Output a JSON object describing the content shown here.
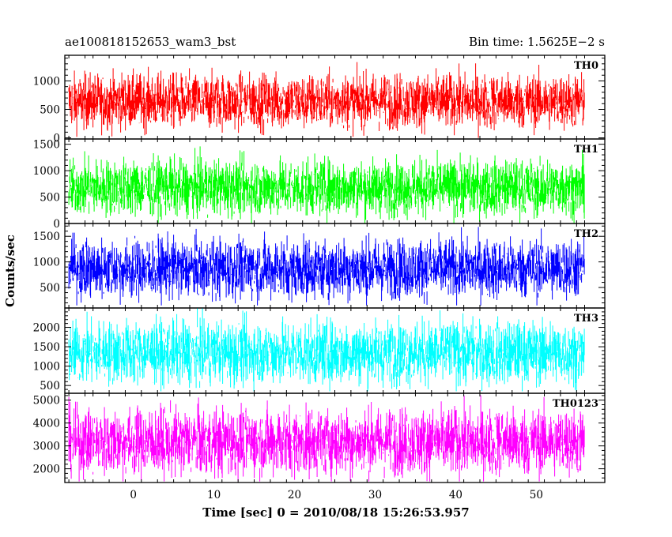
{
  "header": {
    "left_title": "ae100818152653_wam3_bst",
    "right_title": "Bin time: 1.5625E−2 s"
  },
  "chart_data": {
    "type": "line",
    "xlabel": "Time [sec] 0 = 2010/08/18 15:26:53.957",
    "ylabel": "Counts/sec",
    "xlim": [
      -8.5,
      58.5
    ],
    "x_range_data": [
      -8,
      56
    ],
    "x_ticks": [
      0,
      10,
      20,
      30,
      40,
      50
    ],
    "grid": false,
    "panels": [
      {
        "name": "TH0",
        "color": "#ff0000",
        "ylim": [
          -20,
          1450
        ],
        "y_ticks": [
          0,
          500,
          1000
        ],
        "mean": 640,
        "spread": 560,
        "min_val": 0
      },
      {
        "name": "TH1",
        "color": "#00ff00",
        "ylim": [
          0,
          1600
        ],
        "y_ticks": [
          0,
          500,
          1000,
          1500
        ],
        "mean": 680,
        "spread": 620,
        "min_val": 0
      },
      {
        "name": "TH2",
        "color": "#0000ff",
        "ylim": [
          100,
          1750
        ],
        "y_ticks": [
          500,
          1000,
          1500
        ],
        "mean": 870,
        "spread": 680,
        "min_val": 150
      },
      {
        "name": "TH3",
        "color": "#00ffff",
        "ylim": [
          300,
          2500
        ],
        "y_ticks": [
          500,
          1000,
          1500,
          2000
        ],
        "mean": 1350,
        "spread": 950,
        "min_val": 350
      },
      {
        "name": "TH0123",
        "color": "#ff00ff",
        "ylim": [
          1400,
          5300
        ],
        "y_ticks": [
          2000,
          3000,
          4000,
          5000
        ],
        "mean": 3180,
        "spread": 1700,
        "min_val": 1450
      }
    ]
  }
}
